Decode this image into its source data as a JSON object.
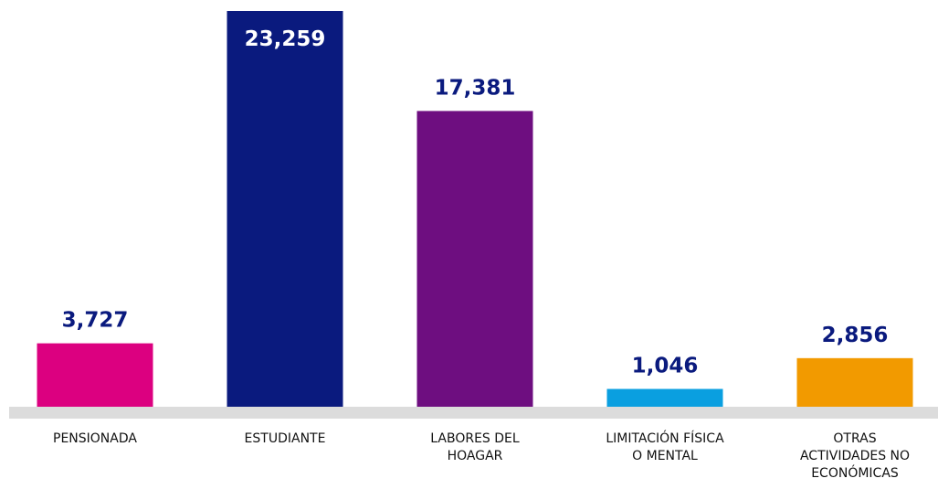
{
  "chart_data": {
    "type": "bar",
    "categories": [
      "PENSIONADA",
      "ESTUDIANTE",
      "LABORES DEL\nHOAGAR",
      "LIMITACIÓN FÍSICA\nO MENTAL",
      "OTRAS\nACTIVIDADES NO\nECONÓMICAS"
    ],
    "values": [
      3727,
      23259,
      17381,
      1046,
      2856
    ],
    "value_labels": [
      "3,727",
      "23,259",
      "17,381",
      "1,046",
      "2,856"
    ],
    "colors": [
      "#dc0080",
      "#0a1a7e",
      "#6e0e80",
      "#0a9fe0",
      "#f29a00"
    ]
  }
}
